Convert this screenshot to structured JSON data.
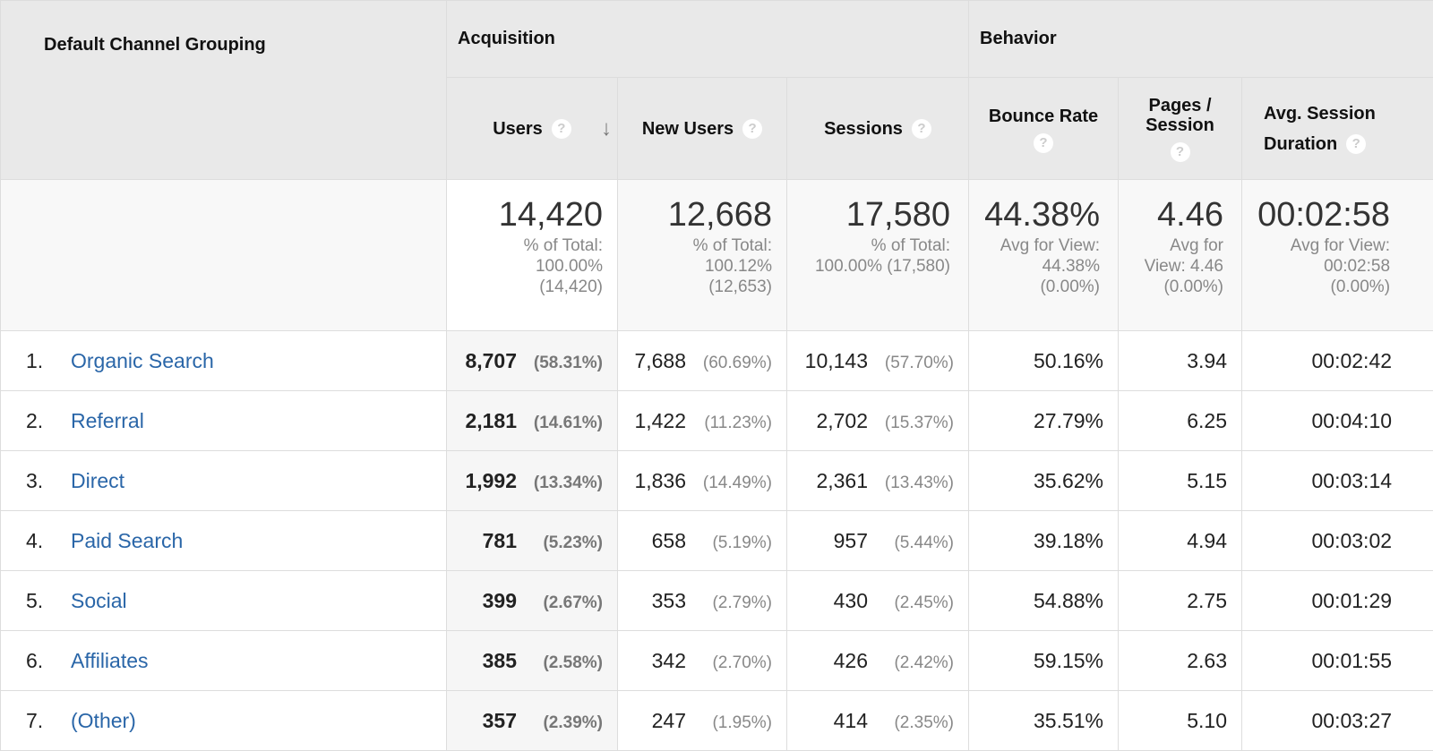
{
  "header": {
    "dimension": "Default Channel Grouping",
    "groups": {
      "acquisition": "Acquisition",
      "behavior": "Behavior"
    },
    "columns": {
      "users": "Users",
      "new_users": "New Users",
      "sessions": "Sessions",
      "bounce_rate": "Bounce Rate",
      "pages_session_1": "Pages /",
      "pages_session_2": "Session",
      "avg_duration_1": "Avg. Session",
      "avg_duration_2": "Duration"
    },
    "help_icon": "?",
    "sort_icon": "↓"
  },
  "totals": {
    "users": {
      "value": "14,420",
      "l1": "% of Total:",
      "l2": "100.00%",
      "l3": "(14,420)"
    },
    "new_users": {
      "value": "12,668",
      "l1": "% of Total:",
      "l2": "100.12%",
      "l3": "(12,653)"
    },
    "sessions": {
      "value": "17,580",
      "l1": "% of Total:",
      "l2": "100.00% (17,580)"
    },
    "bounce_rate": {
      "value": "44.38%",
      "l1": "Avg for View:",
      "l2": "44.38%",
      "l3": "(0.00%)"
    },
    "pages_session": {
      "value": "4.46",
      "l1": "Avg for",
      "l2": "View: 4.46",
      "l3": "(0.00%)"
    },
    "avg_duration": {
      "value": "00:02:58",
      "l1": "Avg for View:",
      "l2": "00:02:58",
      "l3": "(0.00%)"
    }
  },
  "rows": [
    {
      "idx": "1.",
      "channel": "Organic Search",
      "users": "8,707",
      "users_pct": "(58.31%)",
      "new_users": "7,688",
      "new_users_pct": "(60.69%)",
      "sessions": "10,143",
      "sessions_pct": "(57.70%)",
      "bounce": "50.16%",
      "pages": "3.94",
      "duration": "00:02:42"
    },
    {
      "idx": "2.",
      "channel": "Referral",
      "users": "2,181",
      "users_pct": "(14.61%)",
      "new_users": "1,422",
      "new_users_pct": "(11.23%)",
      "sessions": "2,702",
      "sessions_pct": "(15.37%)",
      "bounce": "27.79%",
      "pages": "6.25",
      "duration": "00:04:10"
    },
    {
      "idx": "3.",
      "channel": "Direct",
      "users": "1,992",
      "users_pct": "(13.34%)",
      "new_users": "1,836",
      "new_users_pct": "(14.49%)",
      "sessions": "2,361",
      "sessions_pct": "(13.43%)",
      "bounce": "35.62%",
      "pages": "5.15",
      "duration": "00:03:14"
    },
    {
      "idx": "4.",
      "channel": "Paid Search",
      "users": "781",
      "users_pct": "(5.23%)",
      "new_users": "658",
      "new_users_pct": "(5.19%)",
      "sessions": "957",
      "sessions_pct": "(5.44%)",
      "bounce": "39.18%",
      "pages": "4.94",
      "duration": "00:03:02"
    },
    {
      "idx": "5.",
      "channel": "Social",
      "users": "399",
      "users_pct": "(2.67%)",
      "new_users": "353",
      "new_users_pct": "(2.79%)",
      "sessions": "430",
      "sessions_pct": "(2.45%)",
      "bounce": "54.88%",
      "pages": "2.75",
      "duration": "00:01:29"
    },
    {
      "idx": "6.",
      "channel": "Affiliates",
      "users": "385",
      "users_pct": "(2.58%)",
      "new_users": "342",
      "new_users_pct": "(2.70%)",
      "sessions": "426",
      "sessions_pct": "(2.42%)",
      "bounce": "59.15%",
      "pages": "2.63",
      "duration": "00:01:55"
    },
    {
      "idx": "7.",
      "channel": "(Other)",
      "users": "357",
      "users_pct": "(2.39%)",
      "new_users": "247",
      "new_users_pct": "(1.95%)",
      "sessions": "414",
      "sessions_pct": "(2.35%)",
      "bounce": "35.51%",
      "pages": "5.10",
      "duration": "00:03:27"
    }
  ],
  "colors": {
    "link": "#2a66a8",
    "header_bg": "#e9e9e9"
  }
}
